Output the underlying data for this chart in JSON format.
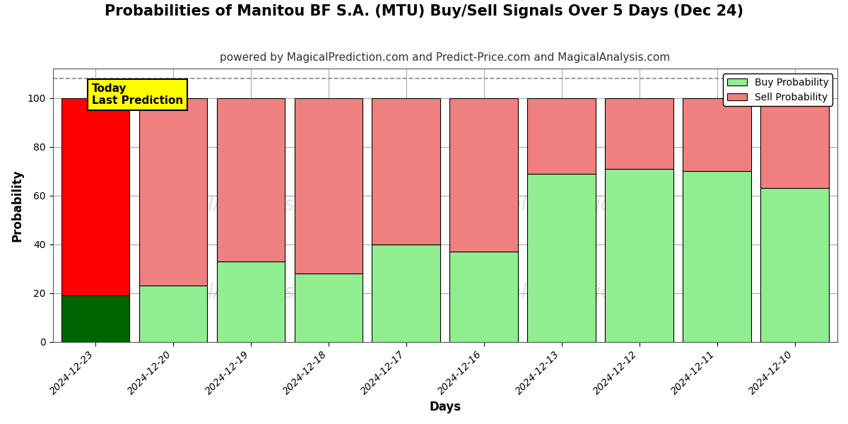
{
  "title": "Probabilities of Manitou BF S.A. (MTU) Buy/Sell Signals Over 5 Days (Dec 24)",
  "subtitle": "powered by MagicalPrediction.com and Predict-Price.com and MagicalAnalysis.com",
  "xlabel": "Days",
  "ylabel": "Probability",
  "categories": [
    "2024-12-23",
    "2024-12-20",
    "2024-12-19",
    "2024-12-18",
    "2024-12-17",
    "2024-12-16",
    "2024-12-13",
    "2024-12-12",
    "2024-12-11",
    "2024-12-10"
  ],
  "buy_values": [
    19,
    23,
    33,
    28,
    40,
    37,
    69,
    71,
    70,
    63
  ],
  "sell_values": [
    81,
    77,
    67,
    72,
    60,
    63,
    31,
    29,
    30,
    37
  ],
  "buy_color_today": "#006400",
  "sell_color_today": "#ff0000",
  "buy_color_normal": "#90EE90",
  "sell_color_normal": "#F08080",
  "bar_edgecolor": "#000000",
  "today_box_color": "#ffff00",
  "today_box_text": "Today\nLast Prediction",
  "legend_buy_label": "Buy Probability",
  "legend_sell_label": "Sell Probability",
  "ylim": [
    0,
    112
  ],
  "yticks": [
    0,
    20,
    40,
    60,
    80,
    100
  ],
  "dashed_line_y": 108,
  "watermark_text_left": "calAnalysis.com",
  "watermark_text_mid": "MagicalPrediction.com",
  "background_color": "#ffffff",
  "grid_color": "#aaaaaa",
  "title_fontsize": 15,
  "subtitle_fontsize": 11,
  "axis_label_fontsize": 12,
  "tick_fontsize": 10,
  "bar_width": 0.88
}
